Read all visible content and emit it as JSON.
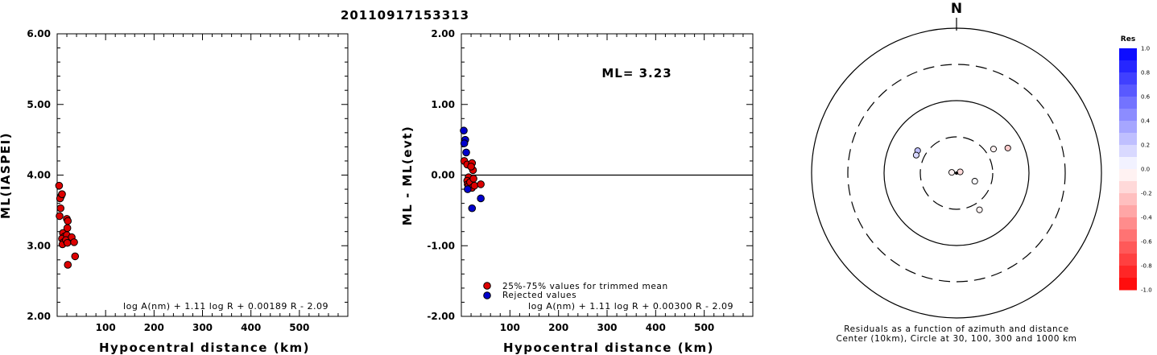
{
  "title": "20110917153313",
  "chart_data": [
    {
      "type": "scatter",
      "xlabel": "Hypocentral distance (km)",
      "ylabel": "ML(IASPEI)",
      "xlim": [
        0,
        600
      ],
      "ylim": [
        2.0,
        6.0
      ],
      "xticks": [
        "100",
        "200",
        "300",
        "400",
        "500"
      ],
      "yticks": [
        "2.00",
        "3.00",
        "4.00",
        "5.00",
        "6.00"
      ],
      "formula": "log A(nm) + 1.11 log R + 0.00189 R - 2.09",
      "series": [
        {
          "color": "#dd0000",
          "points": [
            [
              4,
              3.85
            ],
            [
              8,
              3.7
            ],
            [
              6,
              3.67
            ],
            [
              10,
              3.73
            ],
            [
              7,
              3.53
            ],
            [
              5,
              3.42
            ],
            [
              12,
              3.18
            ],
            [
              15,
              3.13
            ],
            [
              10,
              3.1
            ],
            [
              13,
              3.05
            ],
            [
              11,
              3.02
            ],
            [
              20,
              3.38
            ],
            [
              22,
              3.35
            ],
            [
              21,
              3.25
            ],
            [
              20,
              3.15
            ],
            [
              18,
              3.08
            ],
            [
              21,
              3.04
            ],
            [
              30,
              3.12
            ],
            [
              35,
              3.05
            ],
            [
              37,
              2.85
            ],
            [
              22,
              2.73
            ]
          ]
        }
      ]
    },
    {
      "type": "scatter",
      "xlabel": "Hypocentral distance (km)",
      "ylabel": "ML - ML(evt)",
      "xlim": [
        0,
        600
      ],
      "ylim": [
        -2.0,
        2.0
      ],
      "xticks": [
        "100",
        "200",
        "300",
        "400",
        "500"
      ],
      "yticks": [
        "-2.00",
        "-1.00",
        "0.00",
        "1.00",
        "2.00"
      ],
      "reference_line": 0.0,
      "annotation": "ML= 3.23",
      "legend": [
        "25%-75% values for trimmed mean",
        "Rejected values"
      ],
      "formula": "log A(nm) + 1.11 log R + 0.00300 R - 2.09",
      "series": [
        {
          "name": "25%-75% values for trimmed mean",
          "color": "#dd0000",
          "points": [
            [
              6,
              0.2
            ],
            [
              12,
              0.15
            ],
            [
              15,
              -0.03
            ],
            [
              12,
              -0.08
            ],
            [
              13,
              -0.13
            ],
            [
              15,
              -0.15
            ],
            [
              18,
              -0.1
            ],
            [
              22,
              0.17
            ],
            [
              24,
              0.07
            ],
            [
              25,
              -0.05
            ],
            [
              22,
              -0.18
            ],
            [
              27,
              -0.15
            ],
            [
              20,
              0.12
            ],
            [
              40,
              -0.13
            ]
          ]
        },
        {
          "name": "Rejected values",
          "color": "#0000cc",
          "points": [
            [
              5,
              0.63
            ],
            [
              8,
              0.5
            ],
            [
              6,
              0.45
            ],
            [
              10,
              0.32
            ],
            [
              13,
              -0.2
            ],
            [
              40,
              -0.33
            ],
            [
              22,
              -0.47
            ]
          ]
        }
      ]
    },
    {
      "type": "polar",
      "north_label": "N",
      "caption_line1": "Residuals as a function of azimuth and distance",
      "caption_line2": "Center (10km), Circle at 30, 100, 300 and 1000 km",
      "rings_km": [
        30,
        100,
        300,
        1000
      ],
      "colorbar": {
        "title": "Res",
        "labels": [
          "1.0",
          "0.8",
          "0.6",
          "0.4",
          "0.2",
          "0.0",
          "-0.2",
          "-0.4",
          "-0.6",
          "-0.8",
          "-1.0"
        ]
      },
      "stations": [
        {
          "azimuth_deg": 300,
          "distance_km": 40,
          "residual": 0.25
        },
        {
          "azimuth_deg": 294,
          "distance_km": 39,
          "residual": 0.15
        },
        {
          "azimuth_deg": 57,
          "distance_km": 39,
          "residual": -0.05
        },
        {
          "azimuth_deg": 64,
          "distance_km": 60,
          "residual": -0.2
        },
        {
          "azimuth_deg": 278,
          "distance_km": 10,
          "residual": -0.05
        },
        {
          "azimuth_deg": 72,
          "distance_km": 8,
          "residual": -0.15
        },
        {
          "azimuth_deg": 114,
          "distance_km": 17,
          "residual": 0.02
        },
        {
          "azimuth_deg": 148,
          "distance_km": 38,
          "residual": -0.05
        }
      ]
    }
  ]
}
